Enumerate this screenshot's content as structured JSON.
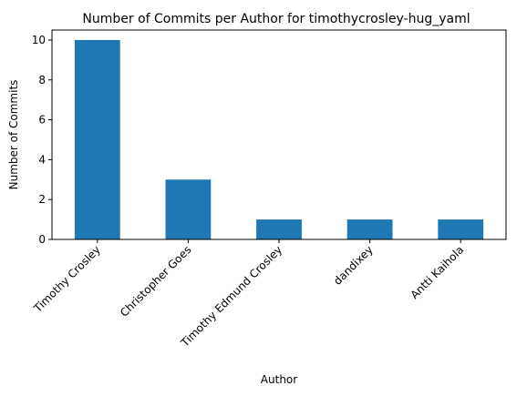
{
  "chart_data": {
    "type": "bar",
    "title": "Number of Commits per Author for timothycrosley-hug_yaml",
    "xlabel": "Author",
    "ylabel": "Number of Commits",
    "categories": [
      "Timothy Crosley",
      "Christopher Goes",
      "Timothy Edmund Crosley",
      "dandixey",
      "Antti Kaihola"
    ],
    "values": [
      10,
      3,
      1,
      1,
      1
    ],
    "ylim": [
      0,
      10.5
    ],
    "yticks": [
      0,
      2,
      4,
      6,
      8,
      10
    ],
    "grid": false,
    "legend": "none",
    "bar_color": "#1f77b4"
  }
}
